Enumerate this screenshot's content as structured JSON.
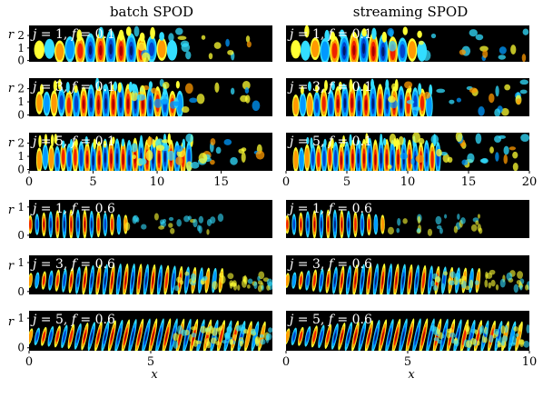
{
  "figure": {
    "column_titles": [
      "batch SPOD",
      "streaming SPOD"
    ],
    "y_axis_label": "r",
    "x_axis_label": "x",
    "group_top": {
      "frequency": "0.1",
      "panels": [
        {
          "mode": "1",
          "y_ticks": [
            "2",
            "1",
            "0"
          ]
        },
        {
          "mode": "3",
          "y_ticks": [
            "2",
            "1",
            "0"
          ]
        },
        {
          "mode": "5",
          "y_ticks": [
            "2",
            "1",
            "0"
          ]
        }
      ],
      "x_ticks_left": [
        "0",
        "5",
        "10",
        "15"
      ],
      "x_ticks_right": [
        "0",
        "5",
        "10",
        "15",
        "20"
      ]
    },
    "group_bottom": {
      "frequency": "0.6",
      "panels": [
        {
          "mode": "1",
          "y_ticks": [
            "1",
            "0"
          ]
        },
        {
          "mode": "3",
          "y_ticks": [
            "1",
            "0"
          ]
        },
        {
          "mode": "5",
          "y_ticks": [
            "1",
            "0"
          ]
        }
      ],
      "x_ticks_left": [
        "0",
        "5"
      ],
      "x_ticks_right": [
        "0",
        "5",
        "10"
      ]
    },
    "colormap": {
      "background": "#000000",
      "positive": [
        "#ffff33",
        "#ff9900",
        "#ee2200",
        "#aa0000"
      ],
      "negative": [
        "#33ddff",
        "#0099ff",
        "#0044cc",
        "#001a66"
      ]
    }
  }
}
